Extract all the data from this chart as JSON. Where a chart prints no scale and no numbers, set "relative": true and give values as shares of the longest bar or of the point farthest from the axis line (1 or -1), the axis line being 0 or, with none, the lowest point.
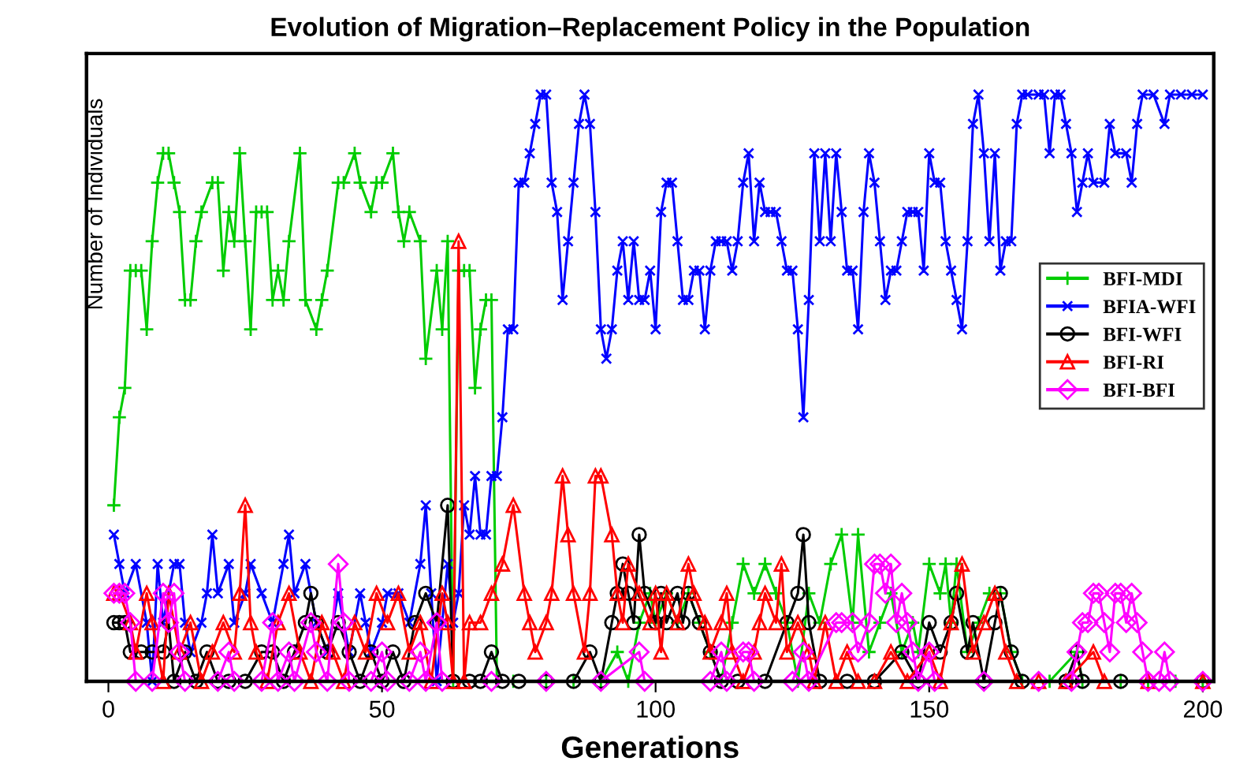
{
  "chart_data": {
    "type": "line",
    "title": "Evolution of Migration–Replacement Policy in the Population",
    "xlabel": "Generations",
    "ylabel": "Number of Individuals",
    "relative": true,
    "xlim": [
      -4,
      202
    ],
    "xticks": [
      0,
      50,
      100,
      150,
      200
    ],
    "tick_labels": "x",
    "grid": false,
    "legend": "right",
    "line_style": "solid",
    "series": [
      {
        "name": "BFI-MDI",
        "color": "#00cc00",
        "marker": "cross",
        "x": [
          1,
          2,
          3,
          4,
          5,
          6,
          7,
          8,
          9,
          10,
          11,
          12,
          13,
          14,
          15,
          16,
          17,
          19,
          20,
          21,
          22,
          23,
          24,
          25,
          26,
          27,
          28,
          29,
          30,
          31,
          32,
          33,
          35,
          36,
          38,
          39,
          40,
          42,
          43,
          45,
          46,
          48,
          49,
          50,
          52,
          53,
          54,
          55,
          57,
          58,
          60,
          61,
          62,
          63,
          64,
          65,
          66,
          67,
          68,
          69,
          70,
          71,
          74,
          80,
          85,
          90,
          93,
          95,
          97,
          99,
          100,
          102,
          104,
          106,
          108,
          110,
          112,
          114,
          116,
          118,
          120,
          122,
          124,
          126,
          128,
          130,
          132,
          134,
          136,
          137,
          139,
          141,
          143,
          145,
          147,
          148,
          150,
          152,
          153,
          154,
          155,
          157,
          159,
          161,
          163,
          165,
          167,
          172,
          177,
          178,
          185,
          190,
          195,
          200
        ],
        "values": [
          0.3,
          0.45,
          0.5,
          0.7,
          0.7,
          0.7,
          0.6,
          0.75,
          0.85,
          0.9,
          0.9,
          0.85,
          0.8,
          0.65,
          0.65,
          0.75,
          0.8,
          0.85,
          0.85,
          0.7,
          0.8,
          0.75,
          0.9,
          0.75,
          0.6,
          0.8,
          0.8,
          0.8,
          0.65,
          0.7,
          0.65,
          0.75,
          0.9,
          0.65,
          0.6,
          0.65,
          0.7,
          0.85,
          0.85,
          0.9,
          0.85,
          0.8,
          0.85,
          0.85,
          0.9,
          0.8,
          0.75,
          0.8,
          0.75,
          0.55,
          0.7,
          0.6,
          0.75,
          0,
          0.7,
          0.7,
          0.7,
          0.5,
          0.6,
          0.65,
          0.65,
          0,
          0,
          0,
          0,
          0,
          0.05,
          0,
          0.1,
          0.15,
          0.1,
          0.15,
          0.1,
          0.15,
          0.1,
          0.05,
          0,
          0.1,
          0.2,
          0.15,
          0.2,
          0.15,
          0.1,
          0,
          0.15,
          0.1,
          0.2,
          0.25,
          0.1,
          0.25,
          0.05,
          0.1,
          0.15,
          0.05,
          0.1,
          0.05,
          0.2,
          0.15,
          0.2,
          0.1,
          0.2,
          0.05,
          0.1,
          0.15,
          0.15,
          0.05,
          0,
          0,
          0.05,
          0,
          0,
          0,
          0,
          0
        ]
      },
      {
        "name": "BFIA-WFI",
        "color": "#0000ff",
        "marker": "star",
        "x": [
          1,
          2,
          3,
          5,
          7,
          8,
          9,
          10,
          12,
          13,
          14,
          15,
          17,
          18,
          19,
          20,
          22,
          23,
          25,
          26,
          28,
          30,
          32,
          33,
          34,
          36,
          38,
          40,
          42,
          44,
          46,
          47,
          48,
          50,
          51,
          53,
          55,
          57,
          58,
          59,
          60,
          61,
          62,
          63,
          64,
          65,
          66,
          67,
          68,
          69,
          70,
          71,
          72,
          73,
          74,
          75,
          76,
          77,
          78,
          79,
          80,
          81,
          82,
          83,
          84,
          85,
          86,
          87,
          88,
          89,
          90,
          91,
          92,
          93,
          94,
          95,
          96,
          97,
          98,
          99,
          100,
          101,
          102,
          103,
          104,
          105,
          106,
          107,
          108,
          109,
          110,
          111,
          112,
          113,
          114,
          115,
          116,
          117,
          118,
          119,
          120,
          121,
          122,
          123,
          124,
          125,
          126,
          127,
          128,
          129,
          130,
          131,
          132,
          133,
          134,
          135,
          136,
          137,
          138,
          139,
          140,
          141,
          142,
          143,
          144,
          145,
          146,
          147,
          148,
          149,
          150,
          151,
          152,
          153,
          154,
          155,
          156,
          157,
          158,
          159,
          160,
          161,
          162,
          163,
          164,
          165,
          166,
          167,
          168,
          170,
          171,
          172,
          173,
          174,
          175,
          176,
          177,
          178,
          179,
          180,
          182,
          183,
          184,
          186,
          187,
          188,
          189,
          191,
          193,
          194,
          196,
          198,
          200
        ],
        "values": [
          0.25,
          0.2,
          0.15,
          0.2,
          0.1,
          0,
          0.2,
          0.1,
          0.2,
          0.2,
          0.1,
          0.05,
          0.1,
          0.15,
          0.25,
          0.15,
          0.2,
          0.1,
          0.15,
          0.2,
          0.15,
          0.1,
          0.2,
          0.25,
          0.15,
          0.2,
          0.1,
          0.05,
          0.15,
          0.05,
          0.15,
          0.1,
          0.05,
          0.1,
          0.15,
          0.15,
          0.1,
          0.2,
          0.3,
          0.15,
          0,
          0.1,
          0.2,
          0.1,
          0.15,
          0.3,
          0.25,
          0.35,
          0.25,
          0.25,
          0.35,
          0.35,
          0.45,
          0.6,
          0.6,
          0.85,
          0.85,
          0.9,
          0.95,
          1,
          1,
          0.85,
          0.8,
          0.65,
          0.75,
          0.85,
          0.95,
          1,
          0.95,
          0.8,
          0.6,
          0.55,
          0.6,
          0.7,
          0.75,
          0.65,
          0.75,
          0.65,
          0.65,
          0.7,
          0.6,
          0.8,
          0.85,
          0.85,
          0.75,
          0.65,
          0.65,
          0.7,
          0.7,
          0.6,
          0.7,
          0.75,
          0.75,
          0.75,
          0.7,
          0.75,
          0.85,
          0.9,
          0.75,
          0.85,
          0.8,
          0.8,
          0.8,
          0.75,
          0.7,
          0.7,
          0.6,
          0.45,
          0.65,
          0.9,
          0.75,
          0.9,
          0.75,
          0.9,
          0.8,
          0.7,
          0.7,
          0.6,
          0.8,
          0.9,
          0.85,
          0.75,
          0.65,
          0.7,
          0.7,
          0.75,
          0.8,
          0.8,
          0.8,
          0.7,
          0.9,
          0.85,
          0.85,
          0.75,
          0.7,
          0.65,
          0.6,
          0.75,
          0.95,
          1,
          0.9,
          0.75,
          0.9,
          0.7,
          0.75,
          0.75,
          0.95,
          1,
          1,
          1,
          1,
          0.9,
          1,
          1,
          0.95,
          0.9,
          0.8,
          0.85,
          0.9,
          0.85,
          0.85,
          0.95,
          0.9,
          0.9,
          0.85,
          0.95,
          1,
          1,
          0.95,
          1,
          1,
          1,
          1
        ]
      },
      {
        "name": "BFI-WFI",
        "color": "#000000",
        "marker": "circle",
        "x": [
          1,
          2,
          3,
          4,
          6,
          8,
          10,
          11,
          12,
          14,
          16,
          18,
          20,
          22,
          25,
          28,
          30,
          32,
          34,
          36,
          37,
          38,
          40,
          42,
          44,
          46,
          48,
          50,
          52,
          54,
          56,
          58,
          60,
          62,
          63,
          66,
          68,
          70,
          72,
          75,
          80,
          85,
          88,
          90,
          92,
          93,
          94,
          95,
          96,
          97,
          98,
          100,
          101,
          102,
          104,
          105,
          106,
          108,
          110,
          112,
          115,
          120,
          124,
          126,
          127,
          128,
          130,
          135,
          140,
          145,
          148,
          150,
          152,
          154,
          155,
          157,
          158,
          160,
          162,
          163,
          165,
          167,
          175,
          177,
          178,
          185,
          200
        ],
        "values": [
          0.1,
          0.1,
          0.1,
          0.05,
          0.05,
          0.05,
          0.05,
          0.1,
          0,
          0.05,
          0,
          0.05,
          0,
          0,
          0,
          0.05,
          0.05,
          0,
          0.05,
          0.1,
          0.15,
          0.1,
          0.05,
          0.1,
          0.05,
          0,
          0.05,
          0,
          0.05,
          0,
          0.1,
          0.15,
          0.1,
          0.3,
          0,
          0,
          0,
          0.05,
          0,
          0,
          0,
          0,
          0.05,
          0,
          0.1,
          0.15,
          0.2,
          0.15,
          0.1,
          0.25,
          0.15,
          0.1,
          0.15,
          0.1,
          0.15,
          0.1,
          0.15,
          0.1,
          0.05,
          0,
          0,
          0,
          0.1,
          0.15,
          0.25,
          0.1,
          0,
          0,
          0,
          0.05,
          0,
          0.1,
          0.05,
          0.1,
          0.15,
          0.05,
          0.1,
          0,
          0.1,
          0.15,
          0.05,
          0,
          0,
          0.05,
          0,
          0,
          0
        ]
      },
      {
        "name": "BFI-RI",
        "color": "#ff0000",
        "marker": "triangle",
        "x": [
          1,
          2,
          4,
          5,
          7,
          8,
          10,
          11,
          13,
          15,
          17,
          19,
          21,
          23,
          24,
          25,
          26,
          27,
          29,
          31,
          33,
          35,
          37,
          39,
          41,
          43,
          45,
          47,
          49,
          51,
          53,
          55,
          57,
          59,
          61,
          62,
          63,
          64,
          65,
          66,
          68,
          70,
          72,
          74,
          76,
          77,
          78,
          80,
          81,
          83,
          84,
          85,
          87,
          88,
          89,
          90,
          92,
          93,
          94,
          95,
          97,
          99,
          100,
          101,
          102,
          104,
          106,
          107,
          109,
          110,
          112,
          113,
          114,
          116,
          118,
          119,
          120,
          122,
          123,
          124,
          126,
          128,
          129,
          131,
          133,
          135,
          137,
          140,
          143,
          146,
          150,
          152,
          154,
          156,
          158,
          160,
          162,
          164,
          166,
          170,
          175,
          180,
          182,
          190,
          200
        ],
        "values": [
          0.15,
          0.15,
          0.1,
          0.05,
          0.15,
          0.1,
          0,
          0.15,
          0.05,
          0.1,
          0,
          0.05,
          0.1,
          0.05,
          0.15,
          0.3,
          0.1,
          0.05,
          0,
          0.1,
          0.15,
          0.05,
          0,
          0.1,
          0.05,
          0,
          0.1,
          0.05,
          0.15,
          0.1,
          0.15,
          0.05,
          0.1,
          0,
          0.15,
          0.1,
          0,
          0.75,
          0,
          0.1,
          0.1,
          0.15,
          0.2,
          0.3,
          0.15,
          0.1,
          0.05,
          0.1,
          0.15,
          0.35,
          0.25,
          0.15,
          0.05,
          0.15,
          0.35,
          0.35,
          0.25,
          0.15,
          0.1,
          0.2,
          0.15,
          0.1,
          0.15,
          0.05,
          0.15,
          0.1,
          0.2,
          0.15,
          0.1,
          0.05,
          0.1,
          0.15,
          0.05,
          0,
          0.05,
          0.1,
          0.15,
          0.1,
          0.2,
          0.05,
          0.1,
          0.05,
          0,
          0.1,
          0,
          0.05,
          0,
          0,
          0.05,
          0,
          0.05,
          0,
          0.1,
          0.2,
          0.05,
          0.1,
          0.15,
          0.05,
          0,
          0,
          0,
          0.05,
          0,
          0,
          0
        ]
      },
      {
        "name": "BFI-BFI",
        "color": "#ff00ff",
        "marker": "diamond",
        "x": [
          1,
          2,
          3,
          4,
          5,
          8,
          10,
          11,
          12,
          13,
          14,
          20,
          22,
          23,
          28,
          30,
          31,
          33,
          34,
          37,
          38,
          40,
          42,
          43,
          44,
          48,
          50,
          51,
          55,
          57,
          58,
          60,
          61,
          70,
          80,
          90,
          97,
          98,
          110,
          112,
          113,
          116,
          117,
          118,
          125,
          127,
          128,
          133,
          134,
          136,
          137,
          139,
          140,
          141,
          142,
          143,
          144,
          145,
          146,
          147,
          148,
          150,
          151,
          160,
          170,
          176,
          177,
          178,
          179,
          180,
          181,
          182,
          183,
          184,
          185,
          186,
          187,
          188,
          189,
          190,
          192,
          193,
          194,
          200
        ],
        "values": [
          0.15,
          0.15,
          0.15,
          0.1,
          0,
          0,
          0.15,
          0.1,
          0.15,
          0.05,
          0,
          0,
          0.05,
          0,
          0,
          0.1,
          0,
          0.05,
          0,
          0.1,
          0.05,
          0,
          0.2,
          0.1,
          0,
          0,
          0.05,
          0,
          0,
          0.05,
          0,
          0.1,
          0,
          0,
          0,
          0,
          0.05,
          0,
          0,
          0.05,
          0,
          0.05,
          0.05,
          0,
          0,
          0.05,
          0,
          0.1,
          0.1,
          0.1,
          0.05,
          0.1,
          0.2,
          0.2,
          0.15,
          0.2,
          0.1,
          0.15,
          0.1,
          0.05,
          0,
          0.05,
          0,
          0,
          0,
          0,
          0.05,
          0.1,
          0.1,
          0.15,
          0.15,
          0.1,
          0.05,
          0.15,
          0.15,
          0.1,
          0.15,
          0.1,
          0.05,
          0,
          0,
          0.05,
          0,
          0
        ]
      }
    ]
  }
}
